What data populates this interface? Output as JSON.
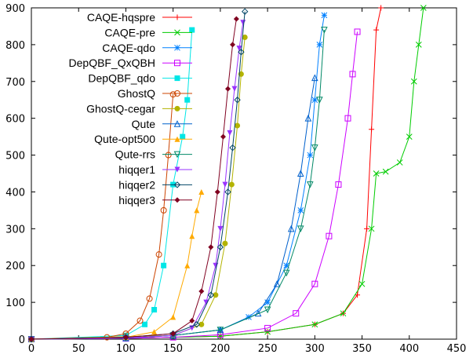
{
  "chart_data": {
    "type": "scatter",
    "title": "",
    "xlabel": "",
    "ylabel": "",
    "xlim": [
      0,
      450
    ],
    "ylim": [
      0,
      900
    ],
    "xticks": [
      0,
      50,
      100,
      150,
      200,
      250,
      300,
      350,
      400,
      450
    ],
    "yticks": [
      0,
      100,
      200,
      300,
      400,
      500,
      600,
      700,
      800,
      900
    ],
    "grid": false,
    "legend_position": "top-left (inside plot)",
    "series": [
      {
        "name": "CAQE-hqspre",
        "color": "#ff0000",
        "marker": "plus",
        "x": [
          0,
          100,
          200,
          250,
          300,
          330,
          345,
          355,
          360,
          365,
          370
        ],
        "y": [
          0,
          2,
          8,
          20,
          40,
          70,
          120,
          300,
          570,
          840,
          900
        ]
      },
      {
        "name": "CAQE-pre",
        "color": "#00cc00",
        "marker": "cross",
        "x": [
          0,
          100,
          200,
          250,
          300,
          330,
          350,
          360,
          365,
          375,
          390,
          400,
          405,
          410,
          415
        ],
        "y": [
          0,
          2,
          8,
          20,
          40,
          70,
          150,
          300,
          450,
          455,
          480,
          550,
          700,
          800,
          900
        ]
      },
      {
        "name": "CAQE-qdo",
        "color": "#0080ff",
        "marker": "star",
        "x": [
          0,
          100,
          150,
          200,
          230,
          250,
          270,
          285,
          295,
          300,
          305,
          310
        ],
        "y": [
          0,
          3,
          10,
          25,
          60,
          100,
          200,
          350,
          500,
          650,
          800,
          880
        ]
      },
      {
        "name": "DepQBF_QxQBH",
        "color": "#cc00ff",
        "marker": "square",
        "x": [
          0,
          100,
          150,
          200,
          250,
          280,
          300,
          315,
          325,
          335,
          340,
          345
        ],
        "y": [
          0,
          2,
          5,
          12,
          30,
          70,
          150,
          280,
          420,
          600,
          720,
          835
        ]
      },
      {
        "name": "DepQBF_qdo",
        "color": "#00e6e6",
        "marker": "filled-square",
        "x": [
          0,
          100,
          120,
          130,
          140,
          150,
          160,
          165,
          170
        ],
        "y": [
          0,
          10,
          40,
          80,
          200,
          420,
          550,
          650,
          840
        ]
      },
      {
        "name": "GhostQ",
        "color": "#cc4400",
        "marker": "circle",
        "x": [
          0,
          80,
          100,
          115,
          125,
          135,
          140,
          145,
          150
        ],
        "y": [
          0,
          5,
          15,
          50,
          110,
          230,
          350,
          500,
          665
        ]
      },
      {
        "name": "GhostQ-cegar",
        "color": "#b3b300",
        "marker": "filled-circle",
        "x": [
          0,
          150,
          180,
          195,
          205,
          212,
          218,
          222,
          226
        ],
        "y": [
          0,
          10,
          40,
          120,
          260,
          420,
          580,
          720,
          820
        ]
      },
      {
        "name": "Qute",
        "color": "#0060cc",
        "marker": "triangle",
        "x": [
          0,
          100,
          150,
          200,
          240,
          260,
          275,
          285,
          293,
          300
        ],
        "y": [
          0,
          3,
          10,
          25,
          70,
          150,
          300,
          450,
          600,
          710
        ]
      },
      {
        "name": "Qute-opt500",
        "color": "#ffaa00",
        "marker": "filled-triangle",
        "x": [
          0,
          100,
          130,
          150,
          165,
          170,
          175,
          180
        ],
        "y": [
          0,
          5,
          20,
          60,
          200,
          280,
          350,
          400
        ]
      },
      {
        "name": "Qute-rrs",
        "color": "#008866",
        "marker": "triangle-down",
        "x": [
          0,
          100,
          150,
          200,
          250,
          270,
          285,
          295,
          300,
          305,
          310
        ],
        "y": [
          0,
          3,
          10,
          25,
          80,
          180,
          300,
          420,
          520,
          650,
          840
        ]
      },
      {
        "name": "hiqqer1",
        "color": "#9933ff",
        "marker": "filled-triangle-down",
        "x": [
          0,
          100,
          150,
          170,
          185,
          195,
          200,
          205,
          210,
          215,
          220,
          224
        ],
        "y": [
          0,
          3,
          10,
          30,
          100,
          200,
          300,
          420,
          560,
          680,
          790,
          860
        ]
      },
      {
        "name": "hiqqer2",
        "color": "#004466",
        "marker": "diamond",
        "x": [
          0,
          100,
          150,
          175,
          190,
          200,
          208,
          213,
          218,
          222,
          226
        ],
        "y": [
          0,
          5,
          15,
          40,
          120,
          250,
          400,
          520,
          650,
          780,
          890
        ]
      },
      {
        "name": "hiqqer3",
        "color": "#800020",
        "marker": "filled-diamond",
        "x": [
          0,
          100,
          150,
          170,
          180,
          190,
          197,
          203,
          208,
          213,
          217
        ],
        "y": [
          0,
          5,
          15,
          50,
          130,
          250,
          400,
          550,
          680,
          800,
          870
        ]
      }
    ]
  }
}
